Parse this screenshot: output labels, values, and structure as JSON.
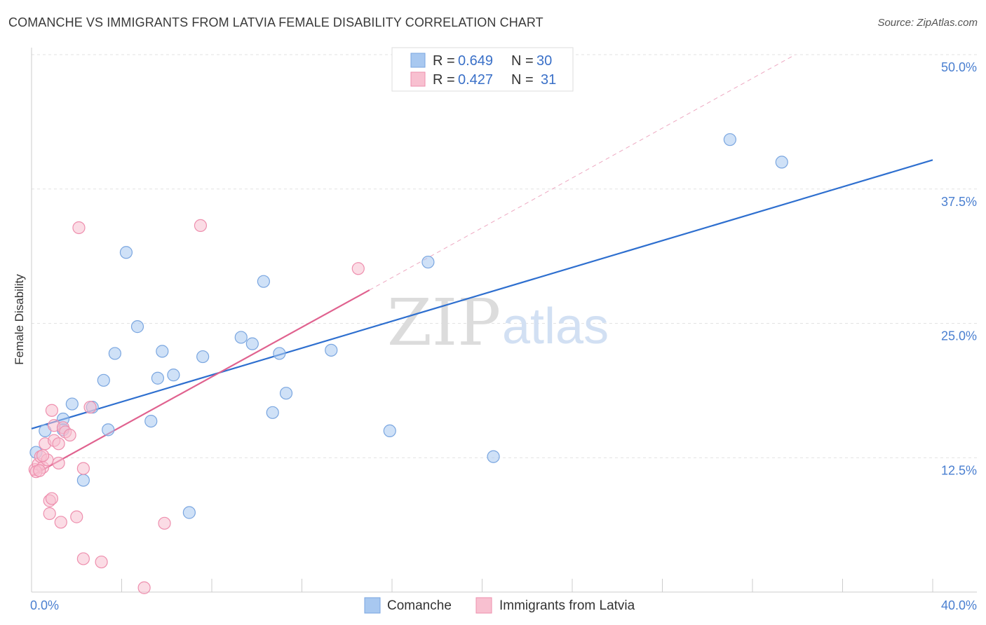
{
  "title": "COMANCHE VS IMMIGRANTS FROM LATVIA FEMALE DISABILITY CORRELATION CHART",
  "source": "Source: ZipAtlas.com",
  "watermark": {
    "zip": "ZIP",
    "atlas": "atlas"
  },
  "chart_data": {
    "type": "scatter",
    "title": "COMANCHE VS IMMIGRANTS FROM LATVIA FEMALE DISABILITY CORRELATION CHART",
    "xlabel": "",
    "ylabel": "Female Disability",
    "xlim": [
      0,
      40
    ],
    "ylim": [
      0,
      50
    ],
    "x_tick_labels": [
      {
        "value": 0,
        "label": "0.0%"
      },
      {
        "value": 40,
        "label": "40.0%"
      }
    ],
    "y_tick_labels": [
      {
        "value": 12.5,
        "label": "12.5%"
      },
      {
        "value": 25,
        "label": "25.0%"
      },
      {
        "value": 37.5,
        "label": "37.5%"
      },
      {
        "value": 50,
        "label": "50.0%"
      }
    ],
    "legend": {
      "r_label": "R =",
      "n_label": "N =",
      "entries": [
        {
          "name": "Comanche",
          "r": "0.649",
          "n": "30"
        },
        {
          "name": "Immigrants from Latvia",
          "r": "0.427",
          "n": "31"
        }
      ]
    },
    "series": [
      {
        "name": "Comanche",
        "color": "#a8c8f0",
        "stroke": "#7aa6e0",
        "trend_color": "#2e6fcf",
        "trend": {
          "x0": 0,
          "y0": 15.2,
          "x1": 40,
          "y1": 40.2,
          "dashed_to": null
        },
        "points": [
          {
            "x": 0.2,
            "y": 13.0
          },
          {
            "x": 0.6,
            "y": 15.0
          },
          {
            "x": 1.4,
            "y": 16.1
          },
          {
            "x": 1.8,
            "y": 17.5
          },
          {
            "x": 2.7,
            "y": 17.2
          },
          {
            "x": 3.2,
            "y": 19.7
          },
          {
            "x": 3.4,
            "y": 15.1
          },
          {
            "x": 3.7,
            "y": 22.2
          },
          {
            "x": 4.2,
            "y": 31.6
          },
          {
            "x": 4.7,
            "y": 24.7
          },
          {
            "x": 5.3,
            "y": 15.9
          },
          {
            "x": 5.6,
            "y": 19.9
          },
          {
            "x": 5.8,
            "y": 22.4
          },
          {
            "x": 6.3,
            "y": 20.2
          },
          {
            "x": 7.6,
            "y": 21.9
          },
          {
            "x": 9.3,
            "y": 23.7
          },
          {
            "x": 9.8,
            "y": 23.1
          },
          {
            "x": 10.3,
            "y": 28.9
          },
          {
            "x": 10.7,
            "y": 16.7
          },
          {
            "x": 11.0,
            "y": 22.2
          },
          {
            "x": 11.3,
            "y": 18.5
          },
          {
            "x": 13.3,
            "y": 22.5
          },
          {
            "x": 15.9,
            "y": 15.0
          },
          {
            "x": 17.6,
            "y": 30.7
          },
          {
            "x": 20.5,
            "y": 12.6
          },
          {
            "x": 31.0,
            "y": 42.1
          },
          {
            "x": 33.3,
            "y": 40.0
          },
          {
            "x": 2.3,
            "y": 10.4
          },
          {
            "x": 7.0,
            "y": 7.4
          },
          {
            "x": 1.4,
            "y": 15.1
          }
        ]
      },
      {
        "name": "Immigrants from Latvia",
        "color": "#f8c0d0",
        "stroke": "#ee8fae",
        "trend_color": "#e0628f",
        "trend": {
          "x0": 0,
          "y0": 10.8,
          "x1": 15.0,
          "y1": 28.1,
          "dashed_to": {
            "x": 33.9,
            "y": 50
          }
        },
        "points": [
          {
            "x": 0.15,
            "y": 11.4
          },
          {
            "x": 0.3,
            "y": 11.9
          },
          {
            "x": 0.4,
            "y": 12.6
          },
          {
            "x": 0.5,
            "y": 11.6
          },
          {
            "x": 0.6,
            "y": 13.8
          },
          {
            "x": 0.7,
            "y": 12.3
          },
          {
            "x": 0.8,
            "y": 8.5
          },
          {
            "x": 0.8,
            "y": 7.3
          },
          {
            "x": 0.9,
            "y": 8.7
          },
          {
            "x": 0.9,
            "y": 16.9
          },
          {
            "x": 1.0,
            "y": 15.5
          },
          {
            "x": 1.0,
            "y": 14.1
          },
          {
            "x": 1.2,
            "y": 13.8
          },
          {
            "x": 1.2,
            "y": 12.0
          },
          {
            "x": 1.3,
            "y": 6.5
          },
          {
            "x": 1.4,
            "y": 15.3
          },
          {
            "x": 1.5,
            "y": 14.9
          },
          {
            "x": 1.7,
            "y": 14.6
          },
          {
            "x": 2.0,
            "y": 7.0
          },
          {
            "x": 2.1,
            "y": 33.9
          },
          {
            "x": 2.3,
            "y": 11.5
          },
          {
            "x": 2.3,
            "y": 3.1
          },
          {
            "x": 2.6,
            "y": 17.2
          },
          {
            "x": 3.1,
            "y": 2.8
          },
          {
            "x": 5.0,
            "y": 0.4
          },
          {
            "x": 5.9,
            "y": 6.4
          },
          {
            "x": 7.5,
            "y": 34.1
          },
          {
            "x": 14.5,
            "y": 30.1
          },
          {
            "x": 0.2,
            "y": 11.2
          },
          {
            "x": 0.5,
            "y": 12.7
          },
          {
            "x": 0.35,
            "y": 11.3
          }
        ]
      }
    ]
  }
}
